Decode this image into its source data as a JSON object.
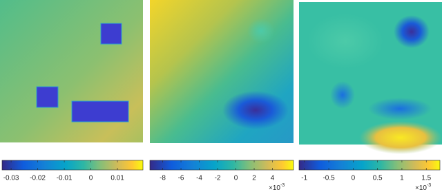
{
  "chart_data": [
    {
      "type": "heatmap",
      "xlim": [
        -0.0334,
        0.0196
      ],
      "xticks": [
        -0.03,
        -0.02,
        -0.01,
        0,
        0.01
      ]
    },
    {
      "type": "heatmap",
      "xlim": [
        -9.4,
        6.3
      ],
      "xticks": [
        -8,
        -6,
        -4,
        -2,
        0,
        2,
        4
      ],
      "multiplier": {
        "base": "×10",
        "power": "-3"
      }
    },
    {
      "type": "heatmap",
      "xlim": [
        -1.11,
        1.78
      ],
      "xticks": [
        -1,
        -0.5,
        0,
        0.5,
        1,
        1.5
      ],
      "multiplier": {
        "base": "×10",
        "power": "-3"
      }
    }
  ]
}
